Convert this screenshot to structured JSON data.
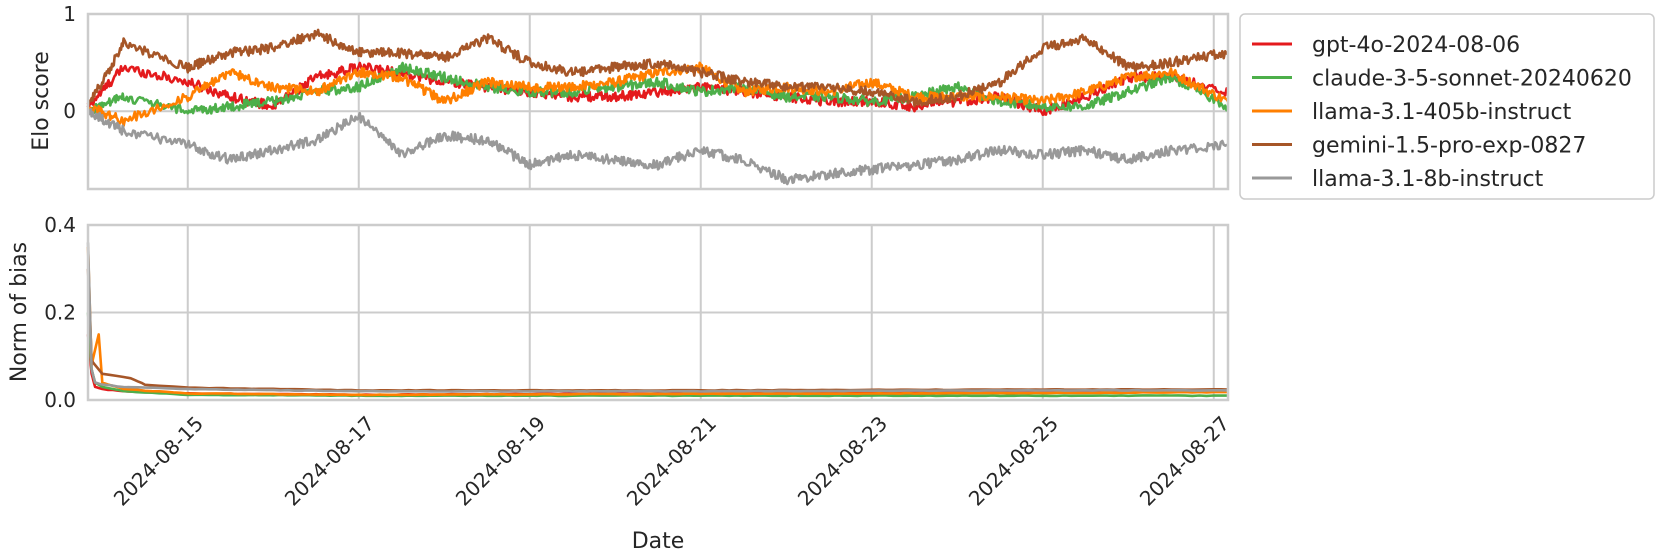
{
  "chart_data": [
    {
      "type": "line",
      "ylabel": "Elo score",
      "ylim": [
        -0.8,
        1.0
      ],
      "yticks": [
        "1",
        "0"
      ],
      "ytick_values": [
        1,
        0
      ],
      "xlim": [
        "2024-08-13T20:00",
        "2024-08-27T04:00"
      ],
      "grid": true,
      "legend": {
        "placement": "outside-right",
        "entries": [
          "gpt-4o-2024-08-06",
          "claude-3-5-sonnet-20240620",
          "llama-3.1-405b-instruct",
          "gemini-1.5-pro-exp-0827",
          "llama-3.1-8b-instruct"
        ]
      },
      "series": [
        {
          "name": "gpt-4o-2024-08-06",
          "color": "#e41a1c",
          "x": [
            "2024-08-13T20:00",
            "2024-08-14T06:00",
            "2024-08-15T00:00",
            "2024-08-15T12:00",
            "2024-08-16T00:00",
            "2024-08-16T12:00",
            "2024-08-17T00:00",
            "2024-08-17T12:00",
            "2024-08-18T00:00",
            "2024-08-18T12:00",
            "2024-08-19T00:00",
            "2024-08-19T12:00",
            "2024-08-20T00:00",
            "2024-08-20T12:00",
            "2024-08-21T00:00",
            "2024-08-21T12:00",
            "2024-08-22T00:00",
            "2024-08-22T12:00",
            "2024-08-23T00:00",
            "2024-08-23T12:00",
            "2024-08-24T00:00",
            "2024-08-24T12:00",
            "2024-08-25T00:00",
            "2024-08-25T12:00",
            "2024-08-26T00:00",
            "2024-08-26T12:00",
            "2024-08-27T04:00"
          ],
          "y": [
            0.05,
            0.45,
            0.3,
            0.15,
            0.05,
            0.35,
            0.45,
            0.4,
            0.3,
            0.25,
            0.2,
            0.15,
            0.15,
            0.2,
            0.25,
            0.2,
            0.15,
            0.1,
            0.1,
            0.05,
            0.1,
            0.15,
            0.0,
            0.15,
            0.35,
            0.35,
            0.2
          ]
        },
        {
          "name": "claude-3-5-sonnet-20240620",
          "color": "#4daf4a",
          "x": [
            "2024-08-13T20:00",
            "2024-08-14T06:00",
            "2024-08-15T00:00",
            "2024-08-15T12:00",
            "2024-08-16T00:00",
            "2024-08-16T12:00",
            "2024-08-17T00:00",
            "2024-08-17T12:00",
            "2024-08-18T00:00",
            "2024-08-18T12:00",
            "2024-08-19T00:00",
            "2024-08-19T12:00",
            "2024-08-20T00:00",
            "2024-08-20T12:00",
            "2024-08-21T00:00",
            "2024-08-21T12:00",
            "2024-08-22T00:00",
            "2024-08-22T12:00",
            "2024-08-23T00:00",
            "2024-08-23T12:00",
            "2024-08-24T00:00",
            "2024-08-24T12:00",
            "2024-08-25T00:00",
            "2024-08-25T12:00",
            "2024-08-26T00:00",
            "2024-08-26T12:00",
            "2024-08-27T04:00"
          ],
          "y": [
            0.0,
            0.15,
            0.0,
            0.05,
            0.1,
            0.2,
            0.25,
            0.45,
            0.35,
            0.25,
            0.2,
            0.2,
            0.25,
            0.3,
            0.2,
            0.25,
            0.15,
            0.15,
            0.1,
            0.15,
            0.25,
            0.1,
            0.05,
            0.05,
            0.2,
            0.35,
            0.05
          ]
        },
        {
          "name": "llama-3.1-405b-instruct",
          "color": "#ff7f00",
          "x": [
            "2024-08-13T20:00",
            "2024-08-14T06:00",
            "2024-08-15T00:00",
            "2024-08-15T12:00",
            "2024-08-16T00:00",
            "2024-08-16T12:00",
            "2024-08-17T00:00",
            "2024-08-17T12:00",
            "2024-08-18T00:00",
            "2024-08-18T12:00",
            "2024-08-19T00:00",
            "2024-08-19T12:00",
            "2024-08-20T00:00",
            "2024-08-20T12:00",
            "2024-08-21T00:00",
            "2024-08-21T12:00",
            "2024-08-22T00:00",
            "2024-08-22T12:00",
            "2024-08-23T00:00",
            "2024-08-23T12:00",
            "2024-08-24T00:00",
            "2024-08-24T12:00",
            "2024-08-25T00:00",
            "2024-08-25T12:00",
            "2024-08-26T00:00",
            "2024-08-26T12:00",
            "2024-08-27T04:00"
          ],
          "y": [
            0.05,
            -0.1,
            0.15,
            0.4,
            0.25,
            0.2,
            0.4,
            0.35,
            0.1,
            0.3,
            0.25,
            0.25,
            0.3,
            0.4,
            0.45,
            0.2,
            0.25,
            0.2,
            0.3,
            0.15,
            0.15,
            0.15,
            0.1,
            0.2,
            0.35,
            0.4,
            0.1
          ]
        },
        {
          "name": "gemini-1.5-pro-exp-0827",
          "color": "#a65628",
          "x": [
            "2024-08-13T20:00",
            "2024-08-14T06:00",
            "2024-08-15T00:00",
            "2024-08-15T12:00",
            "2024-08-16T00:00",
            "2024-08-16T12:00",
            "2024-08-17T00:00",
            "2024-08-17T12:00",
            "2024-08-18T00:00",
            "2024-08-18T12:00",
            "2024-08-19T00:00",
            "2024-08-19T12:00",
            "2024-08-20T00:00",
            "2024-08-20T12:00",
            "2024-08-21T00:00",
            "2024-08-21T12:00",
            "2024-08-22T00:00",
            "2024-08-22T12:00",
            "2024-08-23T00:00",
            "2024-08-23T12:00",
            "2024-08-24T00:00",
            "2024-08-24T12:00",
            "2024-08-25T00:00",
            "2024-08-25T12:00",
            "2024-08-26T00:00",
            "2024-08-26T12:00",
            "2024-08-27T04:00"
          ],
          "y": [
            0.05,
            0.7,
            0.45,
            0.6,
            0.65,
            0.8,
            0.6,
            0.6,
            0.55,
            0.75,
            0.5,
            0.4,
            0.45,
            0.5,
            0.4,
            0.3,
            0.25,
            0.25,
            0.2,
            0.1,
            0.15,
            0.3,
            0.65,
            0.75,
            0.45,
            0.5,
            0.6
          ]
        },
        {
          "name": "llama-3.1-8b-instruct",
          "color": "#999999",
          "x": [
            "2024-08-13T20:00",
            "2024-08-14T06:00",
            "2024-08-15T00:00",
            "2024-08-15T12:00",
            "2024-08-16T00:00",
            "2024-08-16T12:00",
            "2024-08-17T00:00",
            "2024-08-17T12:00",
            "2024-08-18T00:00",
            "2024-08-18T12:00",
            "2024-08-19T00:00",
            "2024-08-19T12:00",
            "2024-08-20T00:00",
            "2024-08-20T12:00",
            "2024-08-21T00:00",
            "2024-08-21T12:00",
            "2024-08-22T00:00",
            "2024-08-22T12:00",
            "2024-08-23T00:00",
            "2024-08-23T12:00",
            "2024-08-24T00:00",
            "2024-08-24T12:00",
            "2024-08-25T00:00",
            "2024-08-25T12:00",
            "2024-08-26T00:00",
            "2024-08-26T12:00",
            "2024-08-27T04:00"
          ],
          "y": [
            0.0,
            -0.2,
            -0.35,
            -0.5,
            -0.4,
            -0.3,
            -0.05,
            -0.45,
            -0.25,
            -0.3,
            -0.55,
            -0.45,
            -0.5,
            -0.55,
            -0.4,
            -0.5,
            -0.7,
            -0.65,
            -0.6,
            -0.55,
            -0.5,
            -0.4,
            -0.45,
            -0.4,
            -0.5,
            -0.4,
            -0.35
          ]
        }
      ]
    },
    {
      "type": "line",
      "ylabel": "Norm of bias",
      "xlabel": "Date",
      "ylim": [
        0.0,
        0.4
      ],
      "yticks": [
        "0.0",
        "0.2",
        "0.4"
      ],
      "ytick_values": [
        0.0,
        0.2,
        0.4
      ],
      "xlim": [
        "2024-08-13T20:00",
        "2024-08-27T04:00"
      ],
      "xticks": [
        "2024-08-15",
        "2024-08-17",
        "2024-08-19",
        "2024-08-21",
        "2024-08-23",
        "2024-08-25",
        "2024-08-27"
      ],
      "grid": true,
      "series": [
        {
          "name": "gpt-4o-2024-08-06",
          "color": "#e41a1c",
          "x": [
            "2024-08-13T20:00",
            "2024-08-13T21:00",
            "2024-08-13T22:00",
            "2024-08-14T00:00",
            "2024-08-14T06:00",
            "2024-08-15T00:00",
            "2024-08-17T00:00",
            "2024-08-21T00:00",
            "2024-08-25T00:00",
            "2024-08-27T04:00"
          ],
          "y": [
            0.15,
            0.06,
            0.03,
            0.025,
            0.02,
            0.015,
            0.012,
            0.015,
            0.018,
            0.02
          ]
        },
        {
          "name": "claude-3-5-sonnet-20240620",
          "color": "#4daf4a",
          "x": [
            "2024-08-13T20:00",
            "2024-08-13T21:00",
            "2024-08-13T22:00",
            "2024-08-14T00:00",
            "2024-08-14T06:00",
            "2024-08-15T00:00",
            "2024-08-17T00:00",
            "2024-08-21T00:00",
            "2024-08-25T00:00",
            "2024-08-27T04:00"
          ],
          "y": [
            0.2,
            0.07,
            0.04,
            0.03,
            0.02,
            0.012,
            0.01,
            0.01,
            0.01,
            0.01
          ]
        },
        {
          "name": "llama-3.1-405b-instruct",
          "color": "#ff7f00",
          "x": [
            "2024-08-13T20:00",
            "2024-08-13T21:00",
            "2024-08-13T23:00",
            "2024-08-14T00:00",
            "2024-08-14T06:00",
            "2024-08-15T00:00",
            "2024-08-17T00:00",
            "2024-08-21T00:00",
            "2024-08-25T00:00",
            "2024-08-27T04:00"
          ],
          "y": [
            0.35,
            0.08,
            0.15,
            0.04,
            0.025,
            0.015,
            0.012,
            0.014,
            0.016,
            0.018
          ]
        },
        {
          "name": "gemini-1.5-pro-exp-0827",
          "color": "#a65628",
          "x": [
            "2024-08-13T20:00",
            "2024-08-13T21:00",
            "2024-08-14T00:00",
            "2024-08-14T08:00",
            "2024-08-14T12:00",
            "2024-08-15T00:00",
            "2024-08-17T00:00",
            "2024-08-21T00:00",
            "2024-08-25T00:00",
            "2024-08-27T04:00"
          ],
          "y": [
            0.3,
            0.09,
            0.06,
            0.05,
            0.035,
            0.028,
            0.022,
            0.022,
            0.024,
            0.024
          ]
        },
        {
          "name": "llama-3.1-8b-instruct",
          "color": "#999999",
          "x": [
            "2024-08-13T20:00",
            "2024-08-13T21:00",
            "2024-08-13T22:00",
            "2024-08-14T00:00",
            "2024-08-14T06:00",
            "2024-08-15T00:00",
            "2024-08-17T00:00",
            "2024-08-21T00:00",
            "2024-08-25T00:00",
            "2024-08-27T04:00"
          ],
          "y": [
            0.36,
            0.07,
            0.04,
            0.035,
            0.03,
            0.025,
            0.02,
            0.02,
            0.022,
            0.022
          ]
        }
      ]
    }
  ]
}
